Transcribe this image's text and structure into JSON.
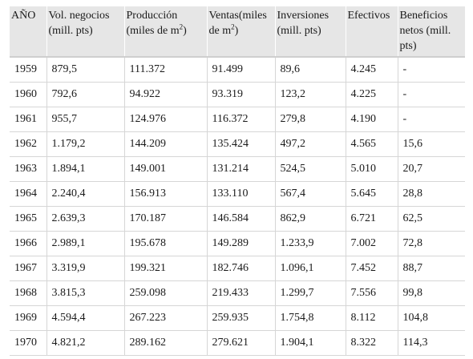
{
  "table": {
    "headers": [
      {
        "text": "AÑO"
      },
      {
        "text": "Vol. negocios (mill. pts)"
      },
      {
        "text": "Producción (miles de m",
        "sup": "2",
        "after": ")"
      },
      {
        "text": "Ventas(miles de m",
        "sup": "2",
        "after": ")"
      },
      {
        "text": "Inversiones (mill. pts)"
      },
      {
        "text": "Efectivos"
      },
      {
        "text": "Beneficios netos (mill. pts)"
      }
    ],
    "rows": [
      [
        "1959",
        "879,5",
        "111.372",
        "91.499",
        "89,6",
        "4.245",
        "-"
      ],
      [
        "1960",
        "792,6",
        "94.922",
        "93.319",
        "123,2",
        "4.225",
        "-"
      ],
      [
        "1961",
        "955,7",
        "124.976",
        "116.372",
        "279,8",
        "4.190",
        "-"
      ],
      [
        "1962",
        "1.179,2",
        "144.209",
        "135.424",
        "497,2",
        "4.565",
        "15,6"
      ],
      [
        "1963",
        "1.894,1",
        "149.001",
        "131.214",
        "524,5",
        "5.010",
        "20,7"
      ],
      [
        "1964",
        "2.240,4",
        "156.913",
        "133.110",
        "567,4",
        "5.645",
        "28,8"
      ],
      [
        "1965",
        "2.639,3",
        "170.187",
        "146.584",
        "862,9",
        "6.721",
        "62,5"
      ],
      [
        "1966",
        "2.989,1",
        "195.678",
        "149.289",
        "1.233,9",
        "7.002",
        "72,8"
      ],
      [
        "1967",
        "3.319,9",
        "199.321",
        "182.746",
        "1.096,1",
        "7.452",
        "88,7"
      ],
      [
        "1968",
        "3.815,3",
        "259.098",
        "219.433",
        "1.299,7",
        "7.556",
        "99,8"
      ],
      [
        "1969",
        "4.594,4",
        "267.223",
        "259.935",
        "1.754,8",
        "8.112",
        "104,8"
      ],
      [
        "1970",
        "4.821,2",
        "289.162",
        "279.621",
        "1.904,1",
        "8.322",
        "114,3"
      ]
    ]
  }
}
